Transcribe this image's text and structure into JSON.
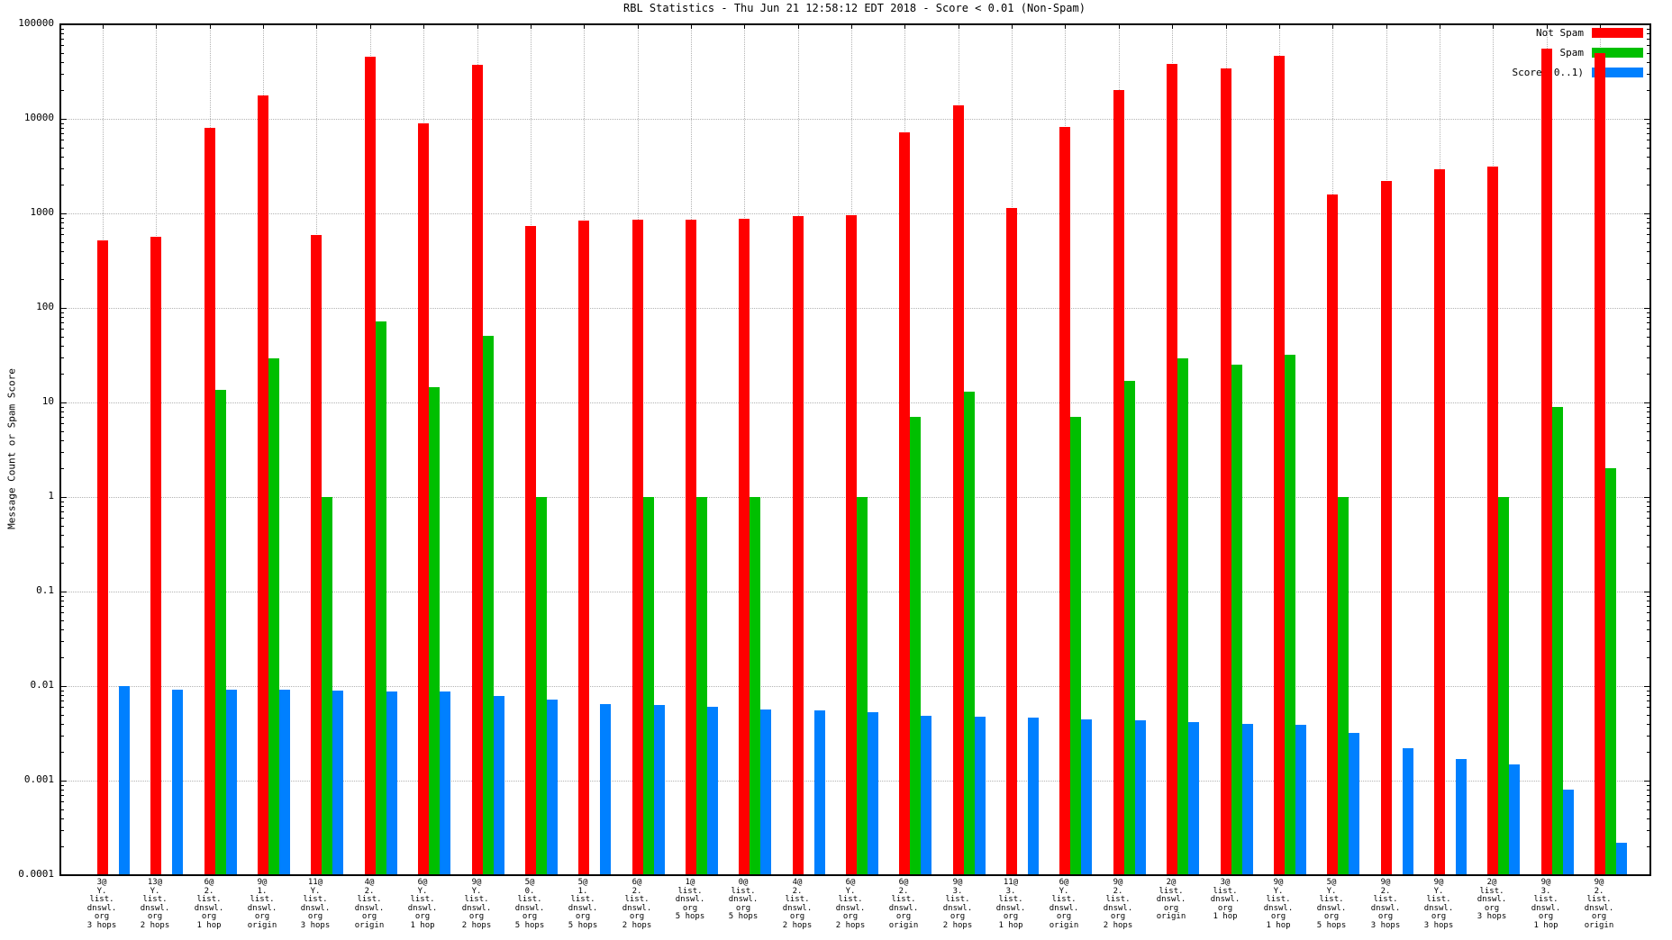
{
  "title": "RBL Statistics - Thu Jun 21 12:58:12 EDT 2018 - Score < 0.01 (Non-Spam)",
  "ylabel": "Message Count or Spam Score",
  "legend": [
    {
      "label": "Not Spam",
      "color": "#ff0000"
    },
    {
      "label": "Spam",
      "color": "#00bf00"
    },
    {
      "label": "Score (0..1)",
      "color": "#0080ff"
    }
  ],
  "y_tick_labels": [
    "100000",
    "10000",
    "1000",
    "100",
    "10",
    "1",
    "0.1",
    "0.01",
    "0.001",
    "0.0001"
  ],
  "chart_data": {
    "type": "bar",
    "title": "RBL Statistics - Thu Jun 21 12:58:12 EDT 2018 - Score < 0.01 (Non-Spam)",
    "xlabel": "",
    "ylabel": "Message Count or Spam Score",
    "y_scale": "log",
    "ylim": [
      0.0001,
      100000
    ],
    "grid": true,
    "legend_position": "top-right-inside",
    "categories": [
      "3@ Y. list. dnswl. org 3 hops",
      "13@ Y. list. dnswl. org 2 hops",
      "6@ 2. list. dnswl. org 1 hop",
      "9@ 1. list. dnswl. org origin",
      "11@ Y. list. dnswl. org 3 hops",
      "4@ 2. list. dnswl. org origin",
      "6@ Y. list. dnswl. org 1 hop",
      "9@ Y. list. dnswl. org 2 hops",
      "5@ 0. list. dnswl. org 5 hops",
      "5@ 1. list. dnswl. org 5 hops",
      "6@ 2. list. dnswl. org 2 hops",
      "1@ list. dnswl. org 5 hops",
      "0@ list. dnswl. org 5 hops",
      "4@ 2. list. dnswl. org 2 hops",
      "6@ Y. list. dnswl. org 2 hops",
      "6@ 2. list. dnswl. org origin",
      "9@ 3. list. dnswl. org 2 hops",
      "11@ 3. list. dnswl. org 1 hop",
      "6@ Y. list. dnswl. org origin",
      "9@ 2. list. dnswl. org 2 hops",
      "2@ list. dnswl. org origin",
      "3@ list. dnswl. org 1 hop",
      "9@ Y. list. dnswl. org 1 hop",
      "5@ Y. list. dnswl. org 5 hops",
      "9@ 2. list. dnswl. org 3 hops",
      "9@ Y. list. dnswl. org 3 hops",
      "2@ list. dnswl. org 3 hops",
      "9@ 3. list. dnswl. org 1 hop",
      "9@ 2. list. dnswl. org origin"
    ],
    "x_tick_lines": [
      [
        "3@",
        "Y.",
        "list.",
        "dnswl.",
        "org",
        "3 hops"
      ],
      [
        "13@",
        "Y.",
        "list.",
        "dnswl.",
        "org",
        "2 hops"
      ],
      [
        "6@",
        "2.",
        "list.",
        "dnswl.",
        "org",
        "1 hop"
      ],
      [
        "9@",
        "1.",
        "list.",
        "dnswl.",
        "org",
        "origin"
      ],
      [
        "11@",
        "Y.",
        "list.",
        "dnswl.",
        "org",
        "3 hops"
      ],
      [
        "4@",
        "2.",
        "list.",
        "dnswl.",
        "org",
        "origin"
      ],
      [
        "6@",
        "Y.",
        "list.",
        "dnswl.",
        "org",
        "1 hop"
      ],
      [
        "9@",
        "Y.",
        "list.",
        "dnswl.",
        "org",
        "2 hops"
      ],
      [
        "5@",
        "0.",
        "list.",
        "dnswl.",
        "org",
        "5 hops"
      ],
      [
        "5@",
        "1.",
        "list.",
        "dnswl.",
        "org",
        "5 hops"
      ],
      [
        "6@",
        "2.",
        "list.",
        "dnswl.",
        "org",
        "2 hops"
      ],
      [
        "1@",
        "list.",
        "dnswl.",
        "org",
        "5 hops"
      ],
      [
        "0@",
        "list.",
        "dnswl.",
        "org",
        "5 hops"
      ],
      [
        "4@",
        "2.",
        "list.",
        "dnswl.",
        "org",
        "2 hops"
      ],
      [
        "6@",
        "Y.",
        "list.",
        "dnswl.",
        "org",
        "2 hops"
      ],
      [
        "6@",
        "2.",
        "list.",
        "dnswl.",
        "org",
        "origin"
      ],
      [
        "9@",
        "3.",
        "list.",
        "dnswl.",
        "org",
        "2 hops"
      ],
      [
        "11@",
        "3.",
        "list.",
        "dnswl.",
        "org",
        "1 hop"
      ],
      [
        "6@",
        "Y.",
        "list.",
        "dnswl.",
        "org",
        "origin"
      ],
      [
        "9@",
        "2.",
        "list.",
        "dnswl.",
        "org",
        "2 hops"
      ],
      [
        "2@",
        "list.",
        "dnswl.",
        "org",
        "origin"
      ],
      [
        "3@",
        "list.",
        "dnswl.",
        "org",
        "1 hop"
      ],
      [
        "9@",
        "Y.",
        "list.",
        "dnswl.",
        "org",
        "1 hop"
      ],
      [
        "5@",
        "Y.",
        "list.",
        "dnswl.",
        "org",
        "5 hops"
      ],
      [
        "9@",
        "2.",
        "list.",
        "dnswl.",
        "org",
        "3 hops"
      ],
      [
        "9@",
        "Y.",
        "list.",
        "dnswl.",
        "org",
        "3 hops"
      ],
      [
        "2@",
        "list.",
        "dnswl.",
        "org",
        "3 hops"
      ],
      [
        "9@",
        "3.",
        "list.",
        "dnswl.",
        "org",
        "1 hop"
      ],
      [
        "9@",
        "2.",
        "list.",
        "dnswl.",
        "org",
        "origin"
      ]
    ],
    "series": [
      {
        "name": "Not Spam",
        "color": "#ff0000",
        "values": [
          520,
          570,
          8000,
          17500,
          590,
          45000,
          9000,
          37000,
          730,
          830,
          850,
          860,
          880,
          930,
          950,
          7200,
          14000,
          1130,
          8200,
          20000,
          38000,
          34000,
          46000,
          1600,
          2200,
          2900,
          3100,
          55000,
          50000
        ]
      },
      {
        "name": "Spam",
        "color": "#00bf00",
        "values": [
          null,
          null,
          13.5,
          29,
          1,
          72,
          14.5,
          51,
          1,
          null,
          1,
          1,
          1,
          null,
          1,
          7,
          13,
          null,
          7,
          17,
          29,
          25,
          32,
          1,
          null,
          null,
          1,
          9,
          2
        ]
      },
      {
        "name": "Score (0..1)",
        "color": "#0080ff",
        "values": [
          0.0099,
          0.0092,
          0.0092,
          0.0092,
          0.009,
          0.0088,
          0.0087,
          0.0078,
          0.0072,
          0.0064,
          0.0063,
          0.0061,
          0.0056,
          0.0055,
          0.0053,
          0.0049,
          0.0047,
          0.0046,
          0.0044,
          0.0043,
          0.0042,
          0.004,
          0.0039,
          0.0032,
          0.0022,
          0.0017,
          0.0015,
          0.0008,
          0.00022
        ]
      }
    ]
  }
}
